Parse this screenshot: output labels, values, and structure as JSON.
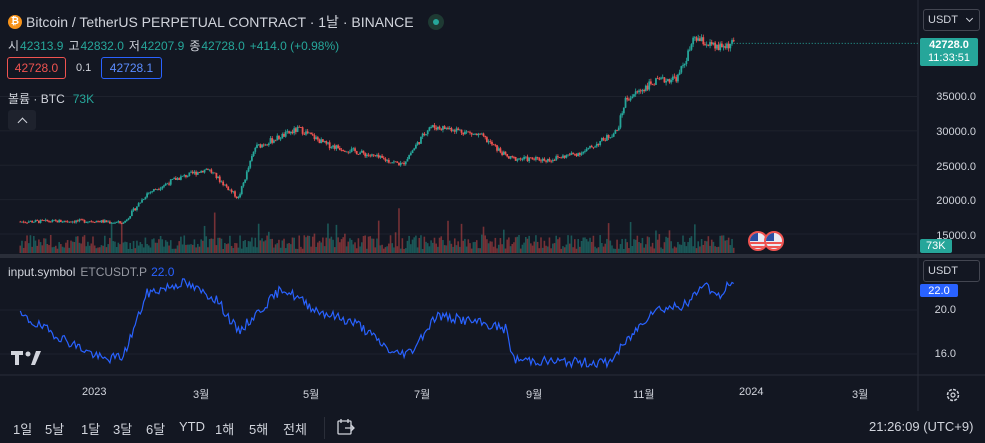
{
  "header": {
    "title": "Bitcoin / TetherUS PERPETUAL CONTRACT · 1날 · BINANCE",
    "status_color": "#26a69a",
    "ohlc": [
      {
        "key": "시",
        "value": "42313.9"
      },
      {
        "key": "고",
        "value": "42832.0"
      },
      {
        "key": "저",
        "value": "42207.9"
      },
      {
        "key": "종",
        "value": "42728.0"
      }
    ],
    "change": "+414.0 (+0.98%)",
    "sell_price": "42728.0",
    "spread": "0.1",
    "buy_price": "42728.1",
    "volume_label": "볼륨 · BTC",
    "volume_value": "73K",
    "collapse_icon": "chevron-up-icon"
  },
  "price_axis": {
    "currency": "USDT",
    "ticks": [
      "35000.0",
      "30000.0",
      "25000.0",
      "20000.0",
      "15000.0"
    ],
    "last_price": "42728.0",
    "countdown": "11:33:51",
    "volume_tag": "73K"
  },
  "indicator": {
    "label": "input.symbol",
    "symbol": "ETCUSDT.P",
    "value": "22.0",
    "currency": "USDT",
    "ticks": [
      "20.0",
      "16.0"
    ],
    "last_value": "22.0"
  },
  "time_axis": {
    "labels": [
      "2023",
      "3월",
      "5월",
      "7월",
      "9월",
      "11월",
      "2024",
      "3월"
    ]
  },
  "bottom_bar": {
    "ranges": [
      "1일",
      "5날",
      "1달",
      "3달",
      "6달",
      "YTD",
      "1해",
      "5해",
      "전체"
    ],
    "goto_icon": "goto-date-icon",
    "clock": "21:26:09 (UTC+9)"
  },
  "colors": {
    "background": "#131722",
    "up": "#26a69a",
    "down": "#ef5350",
    "indicator_line": "#2962ff",
    "grid": "#1e222d"
  },
  "chart_data": [
    {
      "type": "candlestick",
      "title": "Bitcoin / TetherUS PERPETUAL CONTRACT",
      "x_range": [
        "2022-11",
        "2024-01"
      ],
      "ylim": [
        14000,
        44000
      ],
      "anchor_closes": [
        [
          "2022-11",
          16800
        ],
        [
          "2022-12-15",
          16900
        ],
        [
          "2023-01",
          16600
        ],
        [
          "2023-01-15",
          20900
        ],
        [
          "2023-02-01",
          23000
        ],
        [
          "2023-02-20",
          24500
        ],
        [
          "2023-03-10",
          20200
        ],
        [
          "2023-03-20",
          27600
        ],
        [
          "2023-04-15",
          30300
        ],
        [
          "2023-05-01",
          28000
        ],
        [
          "2023-05-20",
          26900
        ],
        [
          "2023-06-15",
          25100
        ],
        [
          "2023-07-01",
          30600
        ],
        [
          "2023-07-15",
          30300
        ],
        [
          "2023-08-01",
          29200
        ],
        [
          "2023-08-17",
          26000
        ],
        [
          "2023-09-10",
          25800
        ],
        [
          "2023-10-01",
          27000
        ],
        [
          "2023-10-20",
          30000
        ],
        [
          "2023-10-25",
          34500
        ],
        [
          "2023-11-10",
          37000
        ],
        [
          "2023-11-25",
          37800
        ],
        [
          "2023-12-05",
          43500
        ],
        [
          "2023-12-18",
          42000
        ],
        [
          "2023-12-28",
          42728
        ]
      ],
      "volume_unit": "BTC",
      "last_volume": "73K"
    },
    {
      "type": "line",
      "series": [
        {
          "name": "ETCUSDT.P",
          "color": "#2962ff"
        }
      ],
      "ylim": [
        14.5,
        23.5
      ],
      "anchor_values": [
        [
          "2022-11",
          19.5
        ],
        [
          "2022-12-01",
          17.0
        ],
        [
          "2022-12-20",
          15.5
        ],
        [
          "2023-01-01",
          15.8
        ],
        [
          "2023-01-15",
          21.5
        ],
        [
          "2023-02-05",
          22.5
        ],
        [
          "2023-02-25",
          21.0
        ],
        [
          "2023-03-10",
          18.0
        ],
        [
          "2023-04-05",
          22.0
        ],
        [
          "2023-04-25",
          20.0
        ],
        [
          "2023-05-20",
          18.7
        ],
        [
          "2023-06-10",
          16.0
        ],
        [
          "2023-06-20",
          16.2
        ],
        [
          "2023-07-05",
          19.5
        ],
        [
          "2023-07-25",
          19.0
        ],
        [
          "2023-08-15",
          18.3
        ],
        [
          "2023-08-20",
          15.5
        ],
        [
          "2023-09-15",
          15.3
        ],
        [
          "2023-10-15",
          15.2
        ],
        [
          "2023-10-25",
          17.0
        ],
        [
          "2023-11-10",
          20.0
        ],
        [
          "2023-12-01",
          20.5
        ],
        [
          "2023-12-10",
          22.5
        ],
        [
          "2023-12-20",
          21.0
        ],
        [
          "2023-12-25",
          22.5
        ],
        [
          "2023-12-28",
          22.0
        ]
      ]
    }
  ]
}
